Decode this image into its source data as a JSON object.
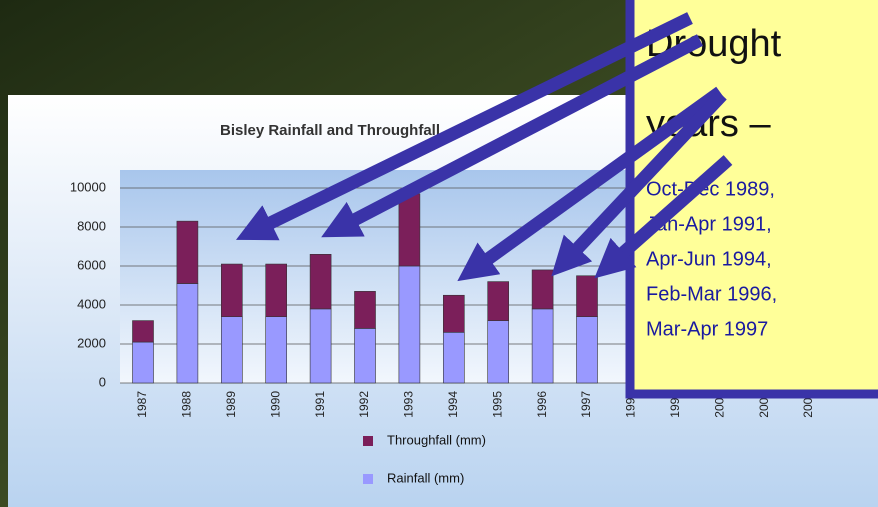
{
  "chart_data": {
    "type": "bar",
    "stacked": true,
    "title": "Bisley Rainfall and Throughfall",
    "categories": [
      "1987",
      "1988",
      "1989",
      "1990",
      "1991",
      "1992",
      "1993",
      "1994",
      "1995",
      "1996",
      "1997",
      "1998",
      "1999",
      "2000",
      "2001",
      "2002"
    ],
    "series": [
      {
        "name": "Rainfall (mm)",
        "color": "#9999ff",
        "values": [
          2100,
          5100,
          3400,
          3400,
          3800,
          2800,
          6000,
          2600,
          3200,
          3800,
          3400,
          null,
          null,
          null,
          null,
          null
        ]
      },
      {
        "name": "Throughfall (mm)",
        "color": "#7b1f5a",
        "values": [
          1100,
          3200,
          2700,
          2700,
          2800,
          1900,
          3700,
          1900,
          2000,
          2000,
          2100,
          null,
          null,
          null,
          null,
          null
        ]
      }
    ],
    "ylim": [
      0,
      10000
    ],
    "yticks": [
      0,
      2000,
      4000,
      6000,
      8000,
      10000
    ],
    "grid": true
  },
  "callout": {
    "heading": [
      "Drought",
      "years –"
    ],
    "items": [
      "Oct-Dec 1989,",
      "Jan-Apr 1991,",
      "Apr-Jun 1994,",
      "Feb-Mar 1996,",
      "Mar-Apr 1997"
    ]
  }
}
